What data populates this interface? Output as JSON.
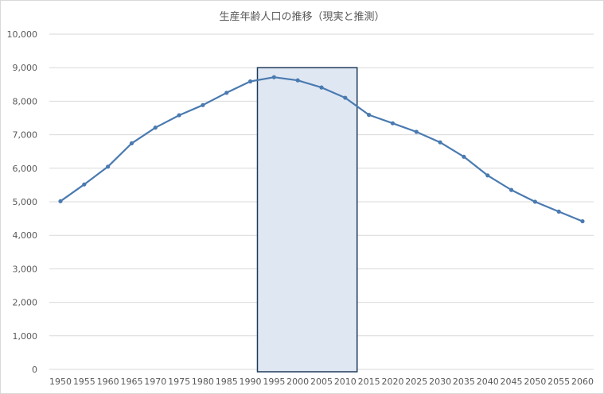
{
  "chart_data": {
    "type": "line",
    "title": "生産年齢人口の推移（現実と推測）",
    "xlabel": "",
    "ylabel": "",
    "x": [
      1950,
      1955,
      1960,
      1965,
      1970,
      1975,
      1980,
      1985,
      1990,
      1995,
      2000,
      2005,
      2010,
      2015,
      2020,
      2025,
      2030,
      2035,
      2040,
      2045,
      2050,
      2055,
      2060
    ],
    "series": [
      {
        "values": [
          5017,
          5517,
          6047,
          6744,
          7212,
          7581,
          7883,
          8251,
          8590,
          8716,
          8622,
          8409,
          8103,
          7592,
          7341,
          7085,
          6773,
          6343,
          5787,
          5353,
          5001,
          4706,
          4418
        ]
      }
    ],
    "ylim": [
      0,
      10000
    ],
    "y_ticks": [
      "0",
      "1,000",
      "2,000",
      "3,000",
      "4,000",
      "5,000",
      "6,000",
      "7,000",
      "8,000",
      "9,000",
      "10,000"
    ],
    "x_ticks": [
      "1950",
      "1955",
      "1960",
      "1965",
      "1970",
      "1975",
      "1980",
      "1985",
      "1990",
      "1995",
      "2000",
      "2005",
      "2010",
      "2015",
      "2020",
      "2025",
      "2030",
      "2035",
      "2040",
      "2045",
      "2050",
      "2055",
      "2060"
    ],
    "grid": "horizontal",
    "highlight_range": {
      "x_from": 1991.5,
      "x_to": 2012.5,
      "y_to": 9000
    },
    "colors": {
      "line": "#4a7ab0",
      "grid": "#d9d9d9",
      "highlight_fill": "#dfe7f3",
      "highlight_border": "#1f3a5a"
    }
  }
}
